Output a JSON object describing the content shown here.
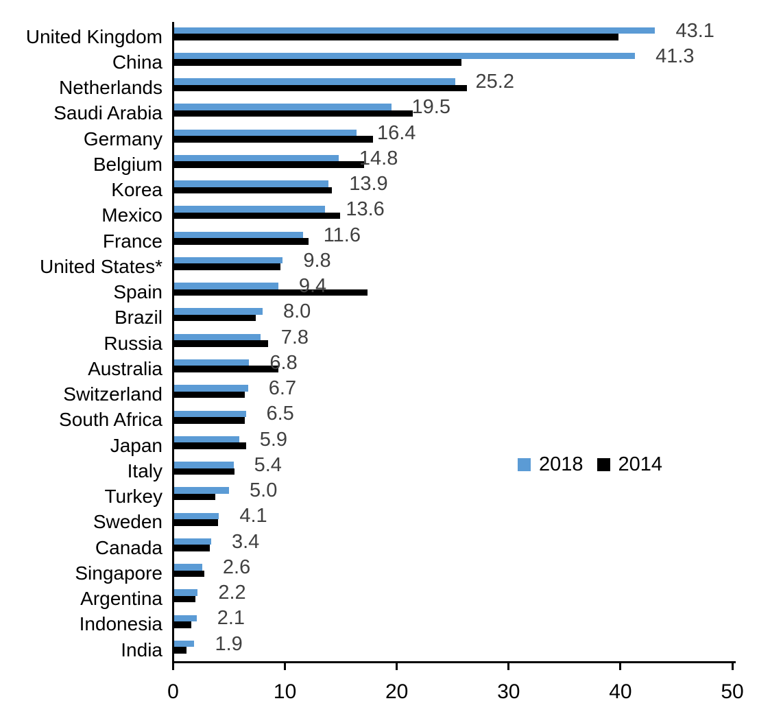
{
  "chart_data": {
    "type": "bar",
    "orientation": "horizontal",
    "title": "",
    "categories": [
      "United Kingdom",
      "China",
      "Netherlands",
      "Saudi Arabia",
      "Germany",
      "Belgium",
      "Korea",
      "Mexico",
      "France",
      "United States*",
      "Spain",
      "Brazil",
      "Russia",
      "Australia",
      "Switzerland",
      "South Africa",
      "Japan",
      "Italy",
      "Turkey",
      "Sweden",
      "Canada",
      "Singapore",
      "Argentina",
      "Indonesia",
      "India"
    ],
    "series": [
      {
        "name": "2018",
        "color": "#5B9BD5",
        "values": [
          43.1,
          41.3,
          25.2,
          19.5,
          16.4,
          14.8,
          13.9,
          13.6,
          11.6,
          9.8,
          9.4,
          8.0,
          7.8,
          6.8,
          6.7,
          6.5,
          5.9,
          5.4,
          5.0,
          4.1,
          3.4,
          2.6,
          2.2,
          2.1,
          1.9
        ]
      },
      {
        "name": "2014",
        "color": "#000000",
        "values": [
          39.8,
          25.8,
          26.3,
          21.4,
          17.9,
          17.1,
          14.2,
          14.9,
          12.1,
          9.6,
          17.4,
          7.4,
          8.5,
          9.4,
          6.4,
          6.4,
          6.5,
          5.5,
          3.8,
          4.0,
          3.3,
          2.8,
          2.0,
          1.6,
          1.2
        ]
      }
    ],
    "value_labels": [
      "43.1",
      "41.3",
      "25.2",
      "19.5",
      "16.4",
      "14.8",
      "13.9",
      "13.6",
      "11.6",
      "9.8",
      "9.4",
      "8.0",
      "7.8",
      "6.8",
      "6.7",
      "6.5",
      "5.9",
      "5.4",
      "5.0",
      "4.1",
      "3.4",
      "2.6",
      "2.2",
      "2.1",
      "1.9"
    ],
    "value_label_series": "2018",
    "xlabel": "",
    "ylabel": "",
    "xlim": [
      0,
      50
    ],
    "x_ticks": [
      "0",
      "10",
      "20",
      "30",
      "40",
      "50"
    ],
    "grid": false,
    "legend_position": "center-right"
  },
  "legend": {
    "items": [
      {
        "label": "2018",
        "color": "#5B9BD5"
      },
      {
        "label": "2014",
        "color": "#000000"
      }
    ]
  },
  "colors": {
    "series_2018": "#5B9BD5",
    "series_2014": "#000000",
    "value_label": "#404040",
    "axis": "#000000",
    "category_label": "#000000"
  }
}
